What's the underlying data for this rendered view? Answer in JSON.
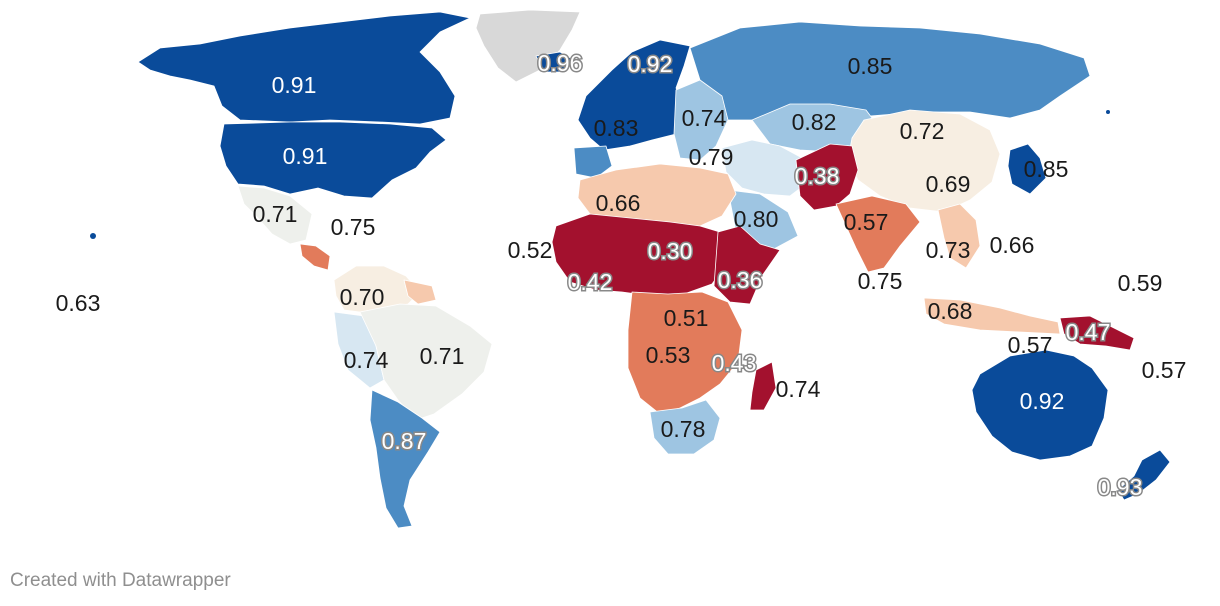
{
  "credit": "Created with Datawrapper",
  "legend": {
    "colors": {
      "very_high": "#0a4b9a",
      "high": "#4c8cc4",
      "mid_high": "#9ec5e2",
      "mid": "#d7e7f2",
      "neutral": "#eef0ec",
      "cream": "#f7eee2",
      "low": "#f6c9ad",
      "mid_low": "#e27b5b",
      "very_low": "#a3112e",
      "no_data": "#d8d8d8"
    }
  },
  "regions": [
    {
      "id": "canada",
      "color": "#0a4b9a"
    },
    {
      "id": "usa",
      "color": "#0a4b9a"
    },
    {
      "id": "mexico",
      "color": "#eef0ec"
    },
    {
      "id": "central-america",
      "color": "#e27b5b"
    },
    {
      "id": "greenland",
      "color": "#d8d8d8"
    },
    {
      "id": "colombia-venezuela",
      "color": "#f7eee2"
    },
    {
      "id": "guianas",
      "color": "#f6c9ad"
    },
    {
      "id": "peru",
      "color": "#d7e7f2"
    },
    {
      "id": "brazil",
      "color": "#eef0ec"
    },
    {
      "id": "argentina-chile",
      "color": "#4c8cc4"
    },
    {
      "id": "iceland",
      "color": "#0a4b9a"
    },
    {
      "id": "western-europe",
      "color": "#0a4b9a"
    },
    {
      "id": "iberia",
      "color": "#4c8cc4"
    },
    {
      "id": "eastern-europe",
      "color": "#9ec5e2"
    },
    {
      "id": "russia",
      "color": "#4c8cc4"
    },
    {
      "id": "central-asia",
      "color": "#9ec5e2"
    },
    {
      "id": "china",
      "color": "#f7eee2"
    },
    {
      "id": "japan-korea",
      "color": "#0a4b9a"
    },
    {
      "id": "middle-east",
      "color": "#d7e7f2"
    },
    {
      "id": "arabia",
      "color": "#9ec5e2"
    },
    {
      "id": "iran-pakistan",
      "color": "#a3112e"
    },
    {
      "id": "south-asia",
      "color": "#e27b5b"
    },
    {
      "id": "southeast-asia",
      "color": "#f6c9ad"
    },
    {
      "id": "indonesia",
      "color": "#f6c9ad"
    },
    {
      "id": "papua",
      "color": "#a3112e"
    },
    {
      "id": "north-africa",
      "color": "#f6c9ad"
    },
    {
      "id": "sahel",
      "color": "#a3112e"
    },
    {
      "id": "horn-of-africa",
      "color": "#a3112e"
    },
    {
      "id": "central-africa",
      "color": "#e27b5b"
    },
    {
      "id": "southern-africa",
      "color": "#9ec5e2"
    },
    {
      "id": "madagascar",
      "color": "#a3112e"
    },
    {
      "id": "australia",
      "color": "#0a4b9a"
    },
    {
      "id": "new-zealand",
      "color": "#0a4b9a"
    }
  ],
  "labels": [
    {
      "text": "0.91",
      "style": "light"
    },
    {
      "text": "0.91",
      "style": "light"
    },
    {
      "text": "0.96",
      "style": "halo"
    },
    {
      "text": "0.92",
      "style": "halo"
    },
    {
      "text": "0.85",
      "style": "dark"
    },
    {
      "text": "0.83",
      "style": "dark"
    },
    {
      "text": "0.74",
      "style": "dark"
    },
    {
      "text": "0.82",
      "style": "dark"
    },
    {
      "text": "0.72",
      "style": "dark"
    },
    {
      "text": "0.79",
      "style": "dark"
    },
    {
      "text": "0.38",
      "style": "halo"
    },
    {
      "text": "0.85",
      "style": "dark"
    },
    {
      "text": "0.69",
      "style": "dark"
    },
    {
      "text": "0.71",
      "style": "dark"
    },
    {
      "text": "0.75",
      "style": "dark"
    },
    {
      "text": "0.66",
      "style": "dark"
    },
    {
      "text": "0.80",
      "style": "dark"
    },
    {
      "text": "0.57",
      "style": "dark"
    },
    {
      "text": "0.52",
      "style": "dark"
    },
    {
      "text": "0.30",
      "style": "halo"
    },
    {
      "text": "0.73",
      "style": "dark"
    },
    {
      "text": "0.66",
      "style": "dark"
    },
    {
      "text": "0.42",
      "style": "halo"
    },
    {
      "text": "0.36",
      "style": "halo"
    },
    {
      "text": "0.75",
      "style": "dark"
    },
    {
      "text": "0.59",
      "style": "dark"
    },
    {
      "text": "0.63",
      "style": "dark"
    },
    {
      "text": "0.70",
      "style": "dark"
    },
    {
      "text": "0.51",
      "style": "dark"
    },
    {
      "text": "0.68",
      "style": "dark"
    },
    {
      "text": "0.47",
      "style": "halo"
    },
    {
      "text": "0.57",
      "style": "dark"
    },
    {
      "text": "0.74",
      "style": "dark"
    },
    {
      "text": "0.71",
      "style": "dark"
    },
    {
      "text": "0.53",
      "style": "dark"
    },
    {
      "text": "0.43",
      "style": "halo"
    },
    {
      "text": "0.57",
      "style": "dark"
    },
    {
      "text": "0.74",
      "style": "dark"
    },
    {
      "text": "0.92",
      "style": "light"
    },
    {
      "text": "0.87",
      "style": "halo"
    },
    {
      "text": "0.78",
      "style": "dark"
    },
    {
      "text": "0.93",
      "style": "halo"
    }
  ]
}
